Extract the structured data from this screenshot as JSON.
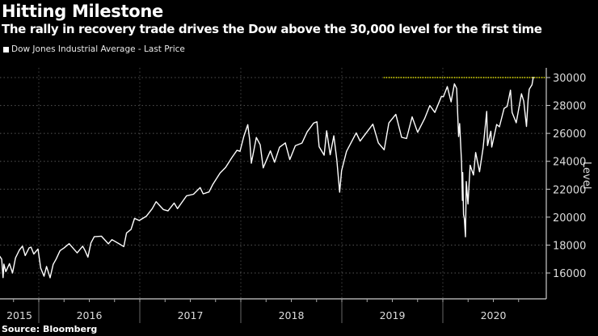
{
  "header": {
    "title": "Hitting Milestone",
    "subtitle": "The rally in recovery trade drives the Dow above the 30,000 level for the first time"
  },
  "footer": {
    "source": "Source: Bloomberg"
  },
  "chart_data": {
    "type": "line",
    "title": "Hitting Milestone",
    "subtitle": "The rally in recovery trade drives the Dow above the 30,000 level for the first time",
    "xlabel": "",
    "ylabel": "Level",
    "ylim": [
      15000,
      30800
    ],
    "yticks": [
      16000,
      18000,
      20000,
      22000,
      24000,
      26000,
      28000,
      30000
    ],
    "xtick_labels": [
      "2015",
      "2016",
      "2017",
      "2018",
      "2019",
      "2020"
    ],
    "grid": true,
    "legend": "top-left",
    "colors": {
      "series": "#ffffff",
      "reference": "#e6e600",
      "background": "#000000"
    },
    "reference_line": {
      "value": 30000,
      "from": "2019-06-01",
      "style": "dotted"
    },
    "series": [
      {
        "name": "Dow Jones Industrial Average - Last Price",
        "points": [
          [
            "2015-06-05",
            17850
          ],
          [
            "2015-06-19",
            18015
          ],
          [
            "2015-06-29",
            17600
          ],
          [
            "2015-07-10",
            17760
          ],
          [
            "2015-07-17",
            18090
          ],
          [
            "2015-07-28",
            17630
          ],
          [
            "2015-08-07",
            17370
          ],
          [
            "2015-08-20",
            16990
          ],
          [
            "2015-08-25",
            15670
          ],
          [
            "2015-08-28",
            16640
          ],
          [
            "2015-09-04",
            16100
          ],
          [
            "2015-09-17",
            16670
          ],
          [
            "2015-09-28",
            16000
          ],
          [
            "2015-10-09",
            17080
          ],
          [
            "2015-10-23",
            17650
          ],
          [
            "2015-11-03",
            17920
          ],
          [
            "2015-11-13",
            17250
          ],
          [
            "2015-11-27",
            17800
          ],
          [
            "2015-12-04",
            17850
          ],
          [
            "2015-12-14",
            17360
          ],
          [
            "2015-12-29",
            17720
          ],
          [
            "2016-01-08",
            16350
          ],
          [
            "2016-01-20",
            15770
          ],
          [
            "2016-01-29",
            16470
          ],
          [
            "2016-02-11",
            15660
          ],
          [
            "2016-02-22",
            16620
          ],
          [
            "2016-03-04",
            17000
          ],
          [
            "2016-03-18",
            17600
          ],
          [
            "2016-04-01",
            17790
          ],
          [
            "2016-04-20",
            18100
          ],
          [
            "2016-05-06",
            17740
          ],
          [
            "2016-05-19",
            17440
          ],
          [
            "2016-06-08",
            17920
          ],
          [
            "2016-06-16",
            17640
          ],
          [
            "2016-06-27",
            17140
          ],
          [
            "2016-07-08",
            18150
          ],
          [
            "2016-07-20",
            18600
          ],
          [
            "2016-08-15",
            18640
          ],
          [
            "2016-09-09",
            18090
          ],
          [
            "2016-09-22",
            18390
          ],
          [
            "2016-10-14",
            18140
          ],
          [
            "2016-11-04",
            17890
          ],
          [
            "2016-11-14",
            18870
          ],
          [
            "2016-11-30",
            19120
          ],
          [
            "2016-12-13",
            19910
          ],
          [
            "2016-12-30",
            19760
          ],
          [
            "2017-01-25",
            20070
          ],
          [
            "2017-02-15",
            20610
          ],
          [
            "2017-03-01",
            21110
          ],
          [
            "2017-03-27",
            20550
          ],
          [
            "2017-04-13",
            20450
          ],
          [
            "2017-05-05",
            21010
          ],
          [
            "2017-05-17",
            20610
          ],
          [
            "2017-06-19",
            21530
          ],
          [
            "2017-07-14",
            21640
          ],
          [
            "2017-08-07",
            22120
          ],
          [
            "2017-08-18",
            21670
          ],
          [
            "2017-09-08",
            21800
          ],
          [
            "2017-09-22",
            22350
          ],
          [
            "2017-10-18",
            23160
          ],
          [
            "2017-11-07",
            23560
          ],
          [
            "2017-11-30",
            24270
          ],
          [
            "2017-12-18",
            24790
          ],
          [
            "2017-12-29",
            24720
          ],
          [
            "2018-01-12",
            25800
          ],
          [
            "2018-01-26",
            26620
          ],
          [
            "2018-02-02",
            25520
          ],
          [
            "2018-02-08",
            23860
          ],
          [
            "2018-02-26",
            25710
          ],
          [
            "2018-03-12",
            25180
          ],
          [
            "2018-03-23",
            23530
          ],
          [
            "2018-04-18",
            24750
          ],
          [
            "2018-05-03",
            23930
          ],
          [
            "2018-05-21",
            25010
          ],
          [
            "2018-06-11",
            25320
          ],
          [
            "2018-06-27",
            24120
          ],
          [
            "2018-07-17",
            25120
          ],
          [
            "2018-08-10",
            25310
          ],
          [
            "2018-08-29",
            26120
          ],
          [
            "2018-09-21",
            26740
          ],
          [
            "2018-10-03",
            26830
          ],
          [
            "2018-10-11",
            25050
          ],
          [
            "2018-10-29",
            24440
          ],
          [
            "2018-11-07",
            26180
          ],
          [
            "2018-11-20",
            24470
          ],
          [
            "2018-12-03",
            25830
          ],
          [
            "2018-12-14",
            24100
          ],
          [
            "2018-12-24",
            21790
          ],
          [
            "2018-12-31",
            23330
          ],
          [
            "2019-01-18",
            24710
          ],
          [
            "2019-02-22",
            26030
          ],
          [
            "2019-03-08",
            25450
          ],
          [
            "2019-04-23",
            26660
          ],
          [
            "2019-05-13",
            25320
          ],
          [
            "2019-06-03",
            24820
          ],
          [
            "2019-06-20",
            26750
          ],
          [
            "2019-07-15",
            27360
          ],
          [
            "2019-08-05",
            25720
          ],
          [
            "2019-08-23",
            25630
          ],
          [
            "2019-09-12",
            27180
          ],
          [
            "2019-10-02",
            26080
          ],
          [
            "2019-10-28",
            27090
          ],
          [
            "2019-11-15",
            28000
          ],
          [
            "2019-12-03",
            27500
          ],
          [
            "2019-12-27",
            28650
          ],
          [
            "2020-01-03",
            28630
          ],
          [
            "2020-01-17",
            29350
          ],
          [
            "2020-01-31",
            28260
          ],
          [
            "2020-02-12",
            29550
          ],
          [
            "2020-02-20",
            29220
          ],
          [
            "2020-02-27",
            25770
          ],
          [
            "2020-03-02",
            26700
          ],
          [
            "2020-03-09",
            23850
          ],
          [
            "2020-03-12",
            21200
          ],
          [
            "2020-03-13",
            23190
          ],
          [
            "2020-03-16",
            20190
          ],
          [
            "2020-03-19",
            19900
          ],
          [
            "2020-03-23",
            18590
          ],
          [
            "2020-03-26",
            22550
          ],
          [
            "2020-04-01",
            20940
          ],
          [
            "2020-04-09",
            23720
          ],
          [
            "2020-04-21",
            23020
          ],
          [
            "2020-04-29",
            24630
          ],
          [
            "2020-05-13",
            23250
          ],
          [
            "2020-05-26",
            24990
          ],
          [
            "2020-06-08",
            27570
          ],
          [
            "2020-06-11",
            25130
          ],
          [
            "2020-06-23",
            26160
          ],
          [
            "2020-06-26",
            25020
          ],
          [
            "2020-07-14",
            26640
          ],
          [
            "2020-07-24",
            26470
          ],
          [
            "2020-08-10",
            27790
          ],
          [
            "2020-08-21",
            27930
          ],
          [
            "2020-09-02",
            29100
          ],
          [
            "2020-09-08",
            27500
          ],
          [
            "2020-09-23",
            26760
          ],
          [
            "2020-10-12",
            28840
          ],
          [
            "2020-10-20",
            28310
          ],
          [
            "2020-10-30",
            26500
          ],
          [
            "2020-11-05",
            28390
          ],
          [
            "2020-11-09",
            29160
          ],
          [
            "2020-11-19",
            29480
          ],
          [
            "2020-11-24",
            30050
          ]
        ]
      }
    ]
  }
}
